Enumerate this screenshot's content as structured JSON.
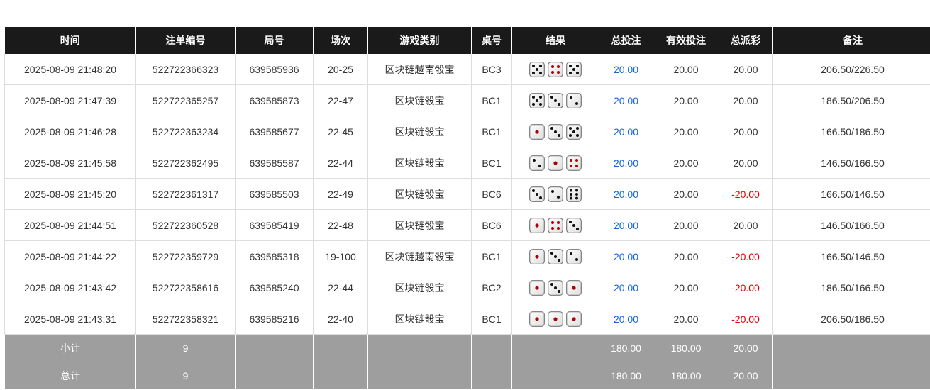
{
  "headers": [
    "时间",
    "注单编号",
    "局号",
    "场次",
    "游戏类别",
    "桌号",
    "结果",
    "总投注",
    "有效投注",
    "总派彩",
    "备注"
  ],
  "rows": [
    {
      "time": "2025-08-09 21:48:20",
      "bet_id": "522722366323",
      "round": "639585936",
      "session": "20-25",
      "game": "区块链越南骰宝",
      "table": "BC3",
      "dice": [
        5,
        4,
        5
      ],
      "total_bet": "20.00",
      "valid_bet": "20.00",
      "payout": "20.00",
      "note": "206.50/226.50"
    },
    {
      "time": "2025-08-09 21:47:39",
      "bet_id": "522722365257",
      "round": "639585873",
      "session": "22-47",
      "game": "区块链骰宝",
      "table": "BC1",
      "dice": [
        5,
        3,
        2
      ],
      "total_bet": "20.00",
      "valid_bet": "20.00",
      "payout": "20.00",
      "note": "186.50/206.50"
    },
    {
      "time": "2025-08-09 21:46:28",
      "bet_id": "522722363234",
      "round": "639585677",
      "session": "22-45",
      "game": "区块链骰宝",
      "table": "BC1",
      "dice": [
        1,
        3,
        5
      ],
      "total_bet": "20.00",
      "valid_bet": "20.00",
      "payout": "20.00",
      "note": "166.50/186.50"
    },
    {
      "time": "2025-08-09 21:45:58",
      "bet_id": "522722362495",
      "round": "639585587",
      "session": "22-44",
      "game": "区块链骰宝",
      "table": "BC1",
      "dice": [
        2,
        1,
        4
      ],
      "total_bet": "20.00",
      "valid_bet": "20.00",
      "payout": "20.00",
      "note": "146.50/166.50"
    },
    {
      "time": "2025-08-09 21:45:20",
      "bet_id": "522722361317",
      "round": "639585503",
      "session": "22-49",
      "game": "区块链骰宝",
      "table": "BC6",
      "dice": [
        3,
        2,
        6
      ],
      "total_bet": "20.00",
      "valid_bet": "20.00",
      "payout": "-20.00",
      "note": "166.50/146.50"
    },
    {
      "time": "2025-08-09 21:44:51",
      "bet_id": "522722360528",
      "round": "639585419",
      "session": "22-48",
      "game": "区块链骰宝",
      "table": "BC6",
      "dice": [
        1,
        4,
        3
      ],
      "total_bet": "20.00",
      "valid_bet": "20.00",
      "payout": "20.00",
      "note": "146.50/166.50"
    },
    {
      "time": "2025-08-09 21:44:22",
      "bet_id": "522722359729",
      "round": "639585318",
      "session": "19-100",
      "game": "区块链越南骰宝",
      "table": "BC1",
      "dice": [
        1,
        3,
        2
      ],
      "total_bet": "20.00",
      "valid_bet": "20.00",
      "payout": "-20.00",
      "note": "166.50/146.50"
    },
    {
      "time": "2025-08-09 21:43:42",
      "bet_id": "522722358616",
      "round": "639585240",
      "session": "22-44",
      "game": "区块链骰宝",
      "table": "BC2",
      "dice": [
        1,
        3,
        1
      ],
      "total_bet": "20.00",
      "valid_bet": "20.00",
      "payout": "-20.00",
      "note": "186.50/166.50"
    },
    {
      "time": "2025-08-09 21:43:31",
      "bet_id": "522722358321",
      "round": "639585216",
      "session": "22-40",
      "game": "区块链骰宝",
      "table": "BC1",
      "dice": [
        1,
        1,
        1
      ],
      "total_bet": "20.00",
      "valid_bet": "20.00",
      "payout": "-20.00",
      "note": "206.50/186.50"
    }
  ],
  "footer": [
    {
      "label": "小计",
      "count": "9",
      "total_bet": "180.00",
      "valid_bet": "180.00",
      "payout": "20.00"
    },
    {
      "label": "总计",
      "count": "9",
      "total_bet": "180.00",
      "valid_bet": "180.00",
      "payout": "20.00"
    }
  ],
  "colors": {
    "header_bg": "#1a1a1a",
    "footer_bg": "#9e9e9e",
    "bet_link": "#1565d8",
    "negative": "#e00000"
  }
}
